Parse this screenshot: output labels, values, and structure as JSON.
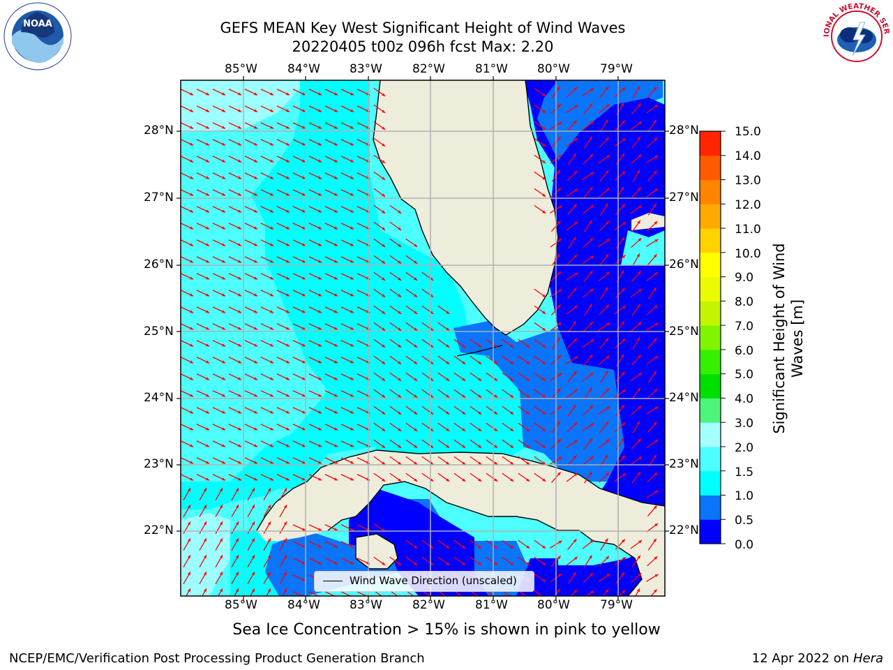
{
  "title": "GEFS MEAN Key West Significant Height of Wind Waves",
  "subtitle": "20220405 t00z 096h fcst   Max: 2.20",
  "longitude_labels": [
    "85°W",
    "84°W",
    "83°W",
    "82°W",
    "81°W",
    "80°W",
    "79°W"
  ],
  "latitude_labels": [
    "28°N",
    "27°N",
    "26°N",
    "25°N",
    "24°N",
    "23°N",
    "22°N"
  ],
  "colorbar": {
    "title": "Significant Height of Wind Waves [m]",
    "title_line1": "Significant Height of Wind",
    "title_line2": "Waves [m]",
    "ticks": [
      "15.0",
      "14.0",
      "13.0",
      "12.0",
      "11.0",
      "10.0",
      "9.0",
      "8.0",
      "7.0",
      "6.0",
      "5.0",
      "4.0",
      "3.0",
      "2.0",
      "1.5",
      "1.0",
      "0.5",
      "0.0"
    ],
    "colors": [
      "#0000ff",
      "#0a74fb",
      "#00ffff",
      "#4dffff",
      "#a6ffff",
      "#4cf57a",
      "#00e000",
      "#35f000",
      "#7ff500",
      "#c4f400",
      "#ecfc00",
      "#ffff00",
      "#ffd200",
      "#ffaa00",
      "#ff8400",
      "#ff5a00",
      "#ff2500"
    ]
  },
  "legend": {
    "label": "Wind Wave Direction (unscaled)",
    "line_color": "#000000"
  },
  "arrow_color": "#ff0000",
  "land_color": "#eeeddb",
  "bottom_note": "Sea Ice Concentration > 15% is shown in pink to yellow",
  "footer": {
    "left": "NCEP/EMC/Verification Post Processing Product Generation Branch",
    "right_date": "12 Apr 2022 on",
    "right_host": "Hera"
  },
  "logos": {
    "left": "NOAA",
    "right": "NATIONAL WEATHER SERVICE"
  }
}
